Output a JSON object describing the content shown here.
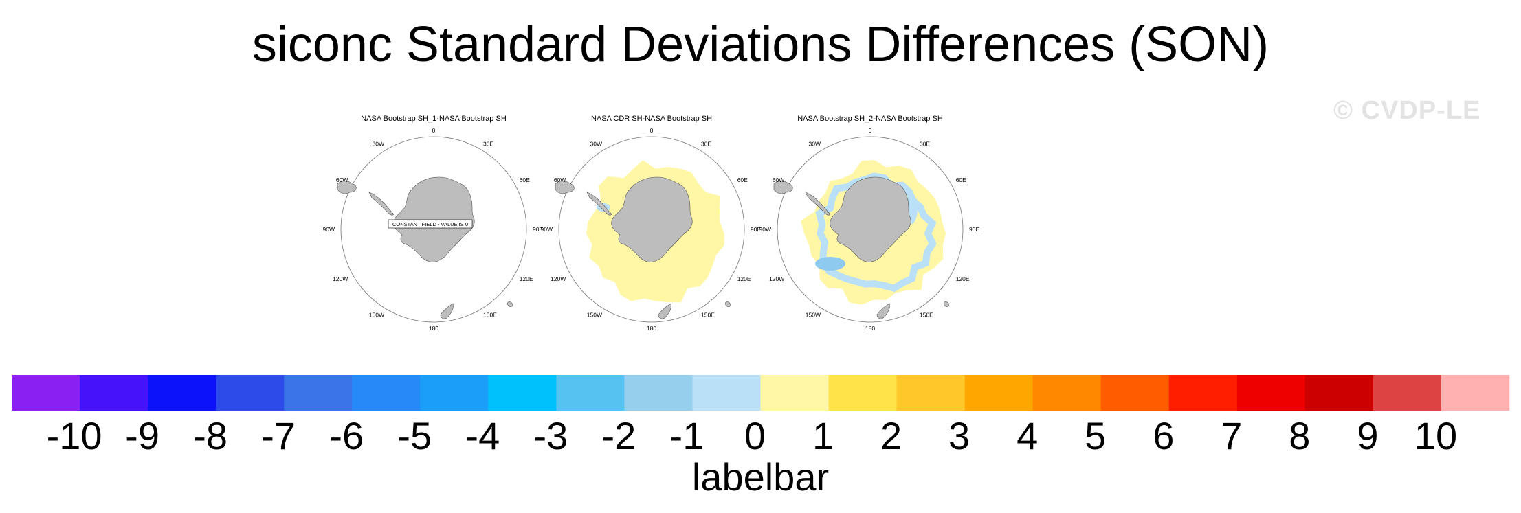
{
  "title": "siconc Standard Deviations Differences (SON)",
  "watermark": "© CVDP-LE",
  "colors": {
    "land": "#bdbdbd",
    "pale_yellow": "#fff6a6",
    "light_blue": "#b9e0f6",
    "mid_blue": "#8ec9ef"
  },
  "panels": [
    {
      "title": "NASA Bootstrap SH_1-NASA Bootstrap SH",
      "fill": "none",
      "annotation": "CONSTANT FIELD - VALUE IS 0"
    },
    {
      "title": "NASA CDR SH-NASA Bootstrap SH",
      "fill": "yellow",
      "annotation": ""
    },
    {
      "title": "NASA Bootstrap SH_2-NASA Bootstrap SH",
      "fill": "yellow-blue",
      "annotation": ""
    }
  ],
  "longitude_labels": [
    "0",
    "30E",
    "60E",
    "90E",
    "120E",
    "150E",
    "180",
    "150W",
    "120W",
    "90W",
    "60W",
    "30W"
  ],
  "colorbar": {
    "colors": [
      "#8a20f2",
      "#4512fa",
      "#0c12fa",
      "#2d4be8",
      "#3a74e8",
      "#2589f7",
      "#1a9ef7",
      "#00c1fb",
      "#55c2f2",
      "#96cfee",
      "#b9e0f6",
      "#fff6a6",
      "#ffe348",
      "#ffc82a",
      "#ffa600",
      "#ff8800",
      "#ff5c00",
      "#ff1f00",
      "#ee0000",
      "#cd0000",
      "#dd4343",
      "#ffb0b0"
    ],
    "tick_labels": [
      "-10",
      "-9",
      "-8",
      "-7",
      "-6",
      "-5",
      "-4",
      "-3",
      "-2",
      "-1",
      "0",
      "1",
      "2",
      "3",
      "4",
      "5",
      "6",
      "7",
      "8",
      "9",
      "10"
    ],
    "caption": "labelbar"
  }
}
